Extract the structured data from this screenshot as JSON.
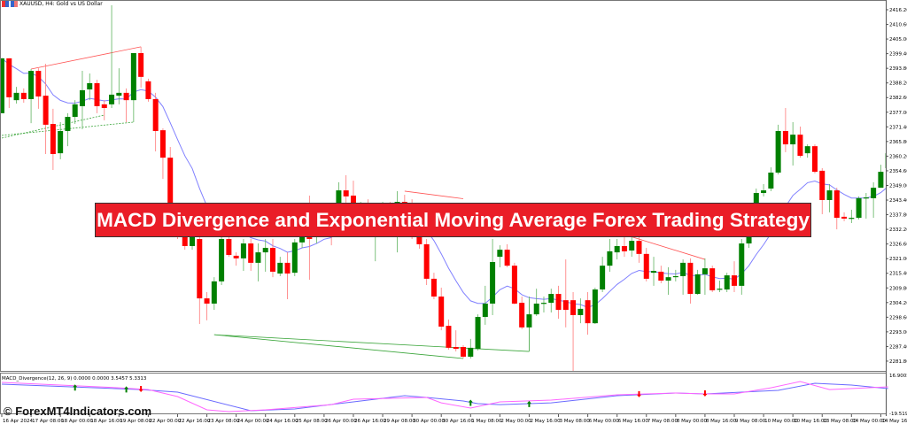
{
  "window": {
    "symbol_title": "XAUUSD, H4:  Gold vs US Dollar"
  },
  "banner": {
    "text": "MACD Divergence and Exponential Moving Average Forex Trading Strategy"
  },
  "watermark": {
    "text": "© ForexMT4Indicators.com"
  },
  "indicator": {
    "label": "MACD_Divergence(12, 26, 9) 0.0000 0.0000 3.5457 5.3313",
    "scale_max": "16.9005",
    "scale_min": "-19.5197"
  },
  "colors": {
    "bull": "#008000",
    "bear": "#ff0000",
    "ema": "#8080ff",
    "macd_pink": "#ff66ff",
    "macd_blue": "#6a6aff",
    "banner": "#ea1d27"
  },
  "price_axis": [
    "2416.20",
    "2410.60",
    "2405.00",
    "2399.40",
    "2393.80",
    "2388.20",
    "2382.60",
    "2377.00",
    "2371.40",
    "2365.80",
    "2360.20",
    "2354.60",
    "2349.00",
    "2343.40",
    "2337.80",
    "2332.20",
    "2326.60",
    "2321.00",
    "2315.40",
    "2309.80",
    "2304.20",
    "2298.60",
    "2293.00",
    "2287.40",
    "2281.80"
  ],
  "time_axis": [
    "16 Apr 2024",
    "17 Apr 08:00",
    "18 Apr 00:00",
    "18 Apr 16:00",
    "19 Apr 08:00",
    "22 Apr 00:00",
    "22 Apr 16:00",
    "23 Apr 08:00",
    "24 Apr 00:00",
    "24 Apr 16:00",
    "25 Apr 08:00",
    "26 Apr 00:00",
    "26 Apr 16:00",
    "29 Apr 08:00",
    "30 Apr 00:00",
    "30 Apr 16:00",
    "1 May 08:00",
    "2 May 00:00",
    "2 May 16:00",
    "3 May 08:00",
    "6 May 00:00",
    "6 May 16:00",
    "7 May 08:00",
    "8 May 00:00",
    "8 May 16:00",
    "9 May 08:00",
    "10 May 00:00",
    "10 May 16:00",
    "13 May 08:00",
    "14 May 00:00",
    "14 May 16:00"
  ],
  "chart_data": {
    "type": "candlestick",
    "ohlc": [
      [
        2376.7,
        2397.7,
        2376.7,
        2397.7
      ],
      [
        2397.7,
        2397.7,
        2378.7,
        2382.8
      ],
      [
        2381.7,
        2386.8,
        2380.4,
        2384.5
      ],
      [
        2384.5,
        2386.2,
        2380.7,
        2382.1
      ],
      [
        2382.1,
        2393.6,
        2372.9,
        2392.9
      ],
      [
        2392.9,
        2393.9,
        2378.4,
        2383.1
      ],
      [
        2383.4,
        2395.6,
        2361.1,
        2372.3
      ],
      [
        2372.6,
        2378.4,
        2355.0,
        2361.1
      ],
      [
        2361.4,
        2373.3,
        2359.1,
        2369.9
      ],
      [
        2369.9,
        2376.7,
        2364.1,
        2375.3
      ],
      [
        2375.3,
        2381.7,
        2372.6,
        2380.1
      ],
      [
        2379.4,
        2392.9,
        2370.6,
        2385.5
      ],
      [
        2385.8,
        2391.9,
        2381.7,
        2388.2
      ],
      [
        2388.2,
        2389.5,
        2376.7,
        2379.4
      ],
      [
        2380.1,
        2381.7,
        2374.0,
        2378.7
      ],
      [
        2380.1,
        2418.0,
        2378.7,
        2383.8
      ],
      [
        2383.4,
        2393.9,
        2380.1,
        2384.5
      ],
      [
        2384.5,
        2386.2,
        2373.3,
        2381.7
      ],
      [
        2381.7,
        2399.7,
        2373.3,
        2399.7
      ],
      [
        2399.7,
        2402.1,
        2386.5,
        2390.6
      ],
      [
        2388.9,
        2389.9,
        2381.1,
        2382.1
      ],
      [
        2382.1,
        2384.5,
        2362.1,
        2369.9
      ],
      [
        2370.2,
        2370.9,
        2351.6,
        2359.7
      ],
      [
        2359.7,
        2363.8,
        2335.4,
        2338.8
      ],
      [
        2338.8,
        2342.1,
        2328.6,
        2331.3
      ],
      [
        2331.3,
        2332.7,
        2324.5,
        2325.9
      ],
      [
        2325.9,
        2331.3,
        2324.5,
        2329.3
      ],
      [
        2328.6,
        2330.3,
        2296.1,
        2305.9
      ],
      [
        2305.9,
        2308.3,
        2297.5,
        2303.9
      ],
      [
        2303.9,
        2314.0,
        2301.5,
        2312.4
      ],
      [
        2312.4,
        2331.3,
        2311.0,
        2328.6
      ],
      [
        2328.6,
        2331.3,
        2321.8,
        2322.5
      ],
      [
        2322.2,
        2323.5,
        2318.4,
        2321.2
      ],
      [
        2321.2,
        2328.6,
        2316.4,
        2326.9
      ],
      [
        2326.9,
        2328.6,
        2316.4,
        2319.5
      ],
      [
        2319.5,
        2326.9,
        2312.4,
        2323.5
      ],
      [
        2323.5,
        2328.6,
        2316.1,
        2325.2
      ],
      [
        2325.2,
        2328.6,
        2314.0,
        2316.1
      ],
      [
        2315.4,
        2321.8,
        2314.4,
        2319.5
      ],
      [
        2319.5,
        2323.5,
        2305.6,
        2315.4
      ],
      [
        2315.7,
        2328.6,
        2314.4,
        2327.3
      ],
      [
        2327.3,
        2333.7,
        2325.2,
        2331.3
      ],
      [
        2331.3,
        2345.2,
        2313.0,
        2328.6
      ],
      [
        2329.3,
        2335.4,
        2326.9,
        2333.7
      ],
      [
        2333.7,
        2338.8,
        2331.3,
        2337.1
      ],
      [
        2337.1,
        2342.1,
        2326.2,
        2332.7
      ],
      [
        2342.1,
        2350.3,
        2337.1,
        2347.2
      ],
      [
        2347.2,
        2353.0,
        2338.8,
        2344.9
      ],
      [
        2345.2,
        2350.9,
        2333.7,
        2337.1
      ],
      [
        2337.1,
        2342.8,
        2332.7,
        2340.5
      ],
      [
        2340.5,
        2343.8,
        2332.0,
        2336.1
      ],
      [
        2335.4,
        2340.5,
        2320.1,
        2338.8
      ],
      [
        2338.8,
        2342.8,
        2329.3,
        2340.5
      ],
      [
        2340.5,
        2342.8,
        2331.3,
        2337.1
      ],
      [
        2342.1,
        2346.9,
        2323.5,
        2342.8
      ],
      [
        2342.8,
        2345.5,
        2330.3,
        2338.8
      ],
      [
        2338.8,
        2343.8,
        2328.6,
        2331.3
      ],
      [
        2331.3,
        2333.7,
        2324.9,
        2326.6
      ],
      [
        2326.6,
        2328.6,
        2311.0,
        2313.4
      ],
      [
        2313.4,
        2315.7,
        2305.6,
        2306.6
      ],
      [
        2306.6,
        2310.0,
        2293.7,
        2295.1
      ],
      [
        2295.4,
        2297.8,
        2286.3,
        2287.0
      ],
      [
        2287.3,
        2293.7,
        2285.6,
        2286.6
      ],
      [
        2287.3,
        2288.0,
        2282.9,
        2283.6
      ],
      [
        2283.6,
        2290.4,
        2282.9,
        2287.0
      ],
      [
        2286.6,
        2299.8,
        2286.0,
        2298.8
      ],
      [
        2298.8,
        2310.7,
        2295.8,
        2303.9
      ],
      [
        2303.9,
        2328.6,
        2299.5,
        2319.8
      ],
      [
        2321.8,
        2326.2,
        2317.8,
        2324.5
      ],
      [
        2324.5,
        2326.6,
        2317.8,
        2318.4
      ],
      [
        2318.4,
        2319.5,
        2303.6,
        2303.9
      ],
      [
        2304.2,
        2306.6,
        2294.1,
        2294.8
      ],
      [
        2294.8,
        2306.6,
        2285.6,
        2299.8
      ],
      [
        2299.8,
        2309.6,
        2299.2,
        2303.9
      ],
      [
        2303.9,
        2306.6,
        2300.5,
        2304.2
      ],
      [
        2304.2,
        2309.6,
        2300.5,
        2307.6
      ],
      [
        2307.6,
        2310.7,
        2298.1,
        2301.5
      ],
      [
        2305.2,
        2320.8,
        2294.8,
        2301.5
      ],
      [
        2305.2,
        2308.3,
        2277.8,
        2299.5
      ],
      [
        2299.5,
        2305.9,
        2296.4,
        2301.9
      ],
      [
        2305.2,
        2308.3,
        2292.0,
        2296.4
      ],
      [
        2296.4,
        2310.0,
        2296.1,
        2309.3
      ],
      [
        2309.3,
        2321.8,
        2308.3,
        2318.4
      ],
      [
        2318.4,
        2328.6,
        2316.1,
        2323.9
      ],
      [
        2323.5,
        2328.6,
        2320.8,
        2325.9
      ],
      [
        2325.9,
        2330.3,
        2321.8,
        2323.9
      ],
      [
        2324.2,
        2330.3,
        2321.8,
        2327.9
      ],
      [
        2327.9,
        2330.3,
        2319.5,
        2322.9
      ],
      [
        2322.9,
        2325.2,
        2312.4,
        2313.4
      ],
      [
        2315.7,
        2321.8,
        2310.7,
        2316.4
      ],
      [
        2316.1,
        2318.4,
        2311.7,
        2312.7
      ],
      [
        2312.7,
        2317.8,
        2307.3,
        2314.0
      ],
      [
        2314.0,
        2316.8,
        2312.4,
        2314.4
      ],
      [
        2314.4,
        2320.8,
        2307.3,
        2319.5
      ],
      [
        2319.5,
        2321.2,
        2303.9,
        2307.6
      ],
      [
        2307.6,
        2316.8,
        2307.3,
        2315.1
      ],
      [
        2315.1,
        2321.2,
        2307.3,
        2317.4
      ],
      [
        2317.4,
        2318.4,
        2308.3,
        2309.0
      ],
      [
        2309.3,
        2312.7,
        2308.3,
        2309.6
      ],
      [
        2309.3,
        2315.7,
        2308.3,
        2314.7
      ],
      [
        2314.7,
        2320.1,
        2308.3,
        2310.7
      ],
      [
        2310.7,
        2328.6,
        2307.3,
        2326.9
      ],
      [
        2326.9,
        2337.1,
        2325.2,
        2335.4
      ],
      [
        2335.4,
        2347.9,
        2333.7,
        2346.2
      ],
      [
        2346.2,
        2349.6,
        2344.9,
        2347.2
      ],
      [
        2347.9,
        2356.0,
        2346.9,
        2354.0
      ],
      [
        2354.0,
        2372.3,
        2353.3,
        2369.9
      ],
      [
        2369.9,
        2378.7,
        2361.8,
        2364.8
      ],
      [
        2364.8,
        2373.3,
        2356.7,
        2368.5
      ],
      [
        2368.5,
        2371.6,
        2359.7,
        2360.4
      ],
      [
        2361.4,
        2364.8,
        2359.7,
        2364.1
      ],
      [
        2364.1,
        2364.8,
        2353.7,
        2354.3
      ],
      [
        2354.7,
        2355.7,
        2338.1,
        2343.5
      ],
      [
        2343.5,
        2349.6,
        2338.8,
        2347.2
      ],
      [
        2347.2,
        2348.2,
        2332.3,
        2336.7
      ],
      [
        2337.1,
        2338.8,
        2335.4,
        2336.4
      ],
      [
        2336.4,
        2339.8,
        2334.7,
        2336.7
      ],
      [
        2336.7,
        2344.9,
        2336.1,
        2344.2
      ],
      [
        2344.2,
        2346.2,
        2336.4,
        2344.5
      ],
      [
        2344.2,
        2350.3,
        2336.7,
        2348.2
      ],
      [
        2348.2,
        2357.0,
        2348.2,
        2354.3
      ],
      [
        2355.7,
        2361.8,
        2355.0,
        2361.4
      ]
    ],
    "trendlines": [
      {
        "color": "red",
        "from": [
          4,
          2393.6
        ],
        "to": [
          19,
          2402.1
        ]
      },
      {
        "color": "green-dotted",
        "from": [
          0,
          2368.2
        ],
        "to": [
          18,
          2373.3
        ]
      },
      {
        "color": "green-dotted",
        "from": [
          0,
          2367.2
        ],
        "to": [
          14,
          2376.0
        ]
      },
      {
        "color": "red",
        "from": [
          55,
          2346.9
        ],
        "to": [
          63,
          2344.0
        ]
      },
      {
        "color": "green",
        "from": [
          29,
          2292.0
        ],
        "to": [
          63,
          2282.9
        ]
      },
      {
        "color": "green",
        "from": [
          29,
          2292.0
        ],
        "to": [
          72,
          2285.6
        ]
      },
      {
        "color": "red",
        "from": [
          85,
          2330.3
        ],
        "to": [
          96,
          2320.8
        ]
      }
    ],
    "macd_pink": [
      [
        0,
        10.1
      ],
      [
        16,
        5.0
      ],
      [
        20,
        3.3
      ],
      [
        24,
        -3.4
      ],
      [
        28,
        -16.1
      ],
      [
        31,
        -17.8
      ],
      [
        36,
        -16.1
      ],
      [
        45,
        -11.1
      ],
      [
        48,
        -6.0
      ],
      [
        58,
        -4.3
      ],
      [
        60,
        -9.4
      ],
      [
        64,
        -14.4
      ],
      [
        68,
        -8.5
      ],
      [
        75,
        -6.8
      ],
      [
        84,
        -1.7
      ],
      [
        92,
        0.0
      ],
      [
        96,
        -0.9
      ],
      [
        100,
        -0.9
      ],
      [
        105,
        5.0
      ],
      [
        109,
        11.0
      ],
      [
        113,
        3.3
      ],
      [
        121,
        5.9
      ]
    ],
    "macd_blue": [
      [
        0,
        8.4
      ],
      [
        19,
        3.3
      ],
      [
        24,
        0.8
      ],
      [
        34,
        -17.0
      ],
      [
        40,
        -15.3
      ],
      [
        48,
        -8.5
      ],
      [
        55,
        -2.6
      ],
      [
        58,
        -4.3
      ],
      [
        63,
        -7.7
      ],
      [
        65,
        -10.2
      ],
      [
        68,
        -11.1
      ],
      [
        75,
        -9.4
      ],
      [
        84,
        -2.6
      ],
      [
        92,
        0.0
      ],
      [
        96,
        -0.9
      ],
      [
        106,
        2.5
      ],
      [
        111,
        9.3
      ],
      [
        116,
        7.6
      ],
      [
        121,
        4.2
      ]
    ],
    "buy_arrows": [
      10,
      17,
      64,
      72
    ],
    "sell_arrows": [
      19,
      87,
      96
    ]
  }
}
